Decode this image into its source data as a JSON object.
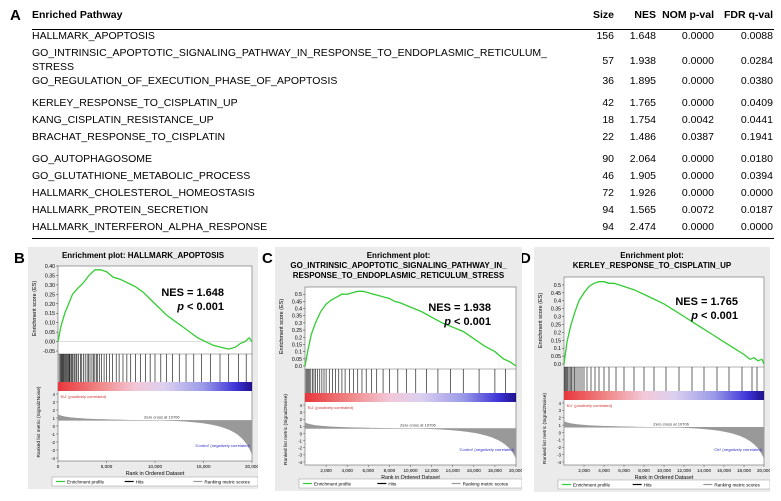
{
  "panel_labels": [
    "A",
    "B",
    "C",
    "D"
  ],
  "table": {
    "headers": [
      "Enriched Pathway",
      "Size",
      "NES",
      "NOM p-val",
      "FDR q-val"
    ],
    "rows": [
      {
        "name": "HALLMARK_APOPTOSIS",
        "size": "156",
        "nes": "1.648",
        "nom": "0.0000",
        "fdr": "0.0088"
      },
      {
        "name": "GO_INTRINSIC_APOPTOTIC_SIGNALING_PATHWAY_IN_RESPONSE_TO_ENDOPLASMIC_RETICULUM_",
        "name2": "STRESS",
        "size": "57",
        "nes": "1.938",
        "nom": "0.0000",
        "fdr": "0.0284"
      },
      {
        "name": "GO_REGULATION_OF_EXECUTION_PHASE_OF_APOPTOSIS",
        "size": "36",
        "nes": "1.895",
        "nom": "0.0000",
        "fdr": "0.0380"
      },
      {
        "name": "KERLEY_RESPONSE_TO_CISPLATIN_UP",
        "size": "42",
        "nes": "1.765",
        "nom": "0.0000",
        "fdr": "0.0409"
      },
      {
        "name": "KANG_CISPLATIN_RESISTANCE_UP",
        "size": "18",
        "nes": "1.754",
        "nom": "0.0042",
        "fdr": "0.0441"
      },
      {
        "name": "BRACHAT_RESPONSE_TO_CISPLATIN",
        "size": "22",
        "nes": "1.486",
        "nom": "0.0387",
        "fdr": "0.1941"
      },
      {
        "name": "GO_AUTOPHAGOSOME",
        "size": "90",
        "nes": "2.064",
        "nom": "0.0000",
        "fdr": "0.0180"
      },
      {
        "name": "GO_GLUTATHIONE_METABOLIC_PROCESS",
        "size": "46",
        "nes": "1.905",
        "nom": "0.0000",
        "fdr": "0.0394"
      },
      {
        "name": "HALLMARK_CHOLESTEROL_HOMEOSTASIS",
        "size": "72",
        "nes": "1.926",
        "nom": "0.0000",
        "fdr": "0.0000"
      },
      {
        "name": "HALLMARK_PROTEIN_SECRETION",
        "size": "94",
        "nes": "1.565",
        "nom": "0.0072",
        "fdr": "0.0187"
      },
      {
        "name": "HALLMARK_INTERFERON_ALPHA_RESPONSE",
        "size": "94",
        "nes": "2.474",
        "nom": "0.0000",
        "fdr": "0.0000"
      }
    ]
  },
  "plots": [
    {
      "title_lines": [
        "Enrichment plot: HALLMARK_APOPTOSIS"
      ],
      "nes_text": "NES = 1.648",
      "p_italic": "p",
      "p_rest": " < 0.001",
      "ylabel_es": "Enrichment score (ES)",
      "ylabel_metric": "Ranked list metric (Signal2Noise)",
      "xlabel": "Rank in Ordered Dataset",
      "pos_label": "'KU' (positively correlated)",
      "neg_label": "'Control' (negatively correlated)",
      "zero_cross": "Zero cross at 10706",
      "legend": [
        "Enrichment profile",
        "Hits",
        "Ranking metric scores"
      ],
      "colors": {
        "profile": "#33cc33",
        "hits": "#000000",
        "metric": "#999999"
      },
      "chart_data": {
        "type": "line",
        "xlim": [
          0,
          20000
        ],
        "x_ticks": [
          0,
          5000,
          10000,
          15000,
          20000
        ],
        "x_tick_labels": [
          "0",
          "5,000",
          "10,000",
          "15,000",
          "20,000"
        ],
        "ylim": [
          -0.05,
          0.4
        ],
        "y_ticks": [
          0.4,
          0.35,
          0.3,
          0.25,
          0.2,
          0.15,
          0.1,
          0.05,
          0.0,
          -0.05
        ],
        "y_tick_labels": [
          "0.40",
          "0.35",
          "0.30",
          "0.25",
          "0.20",
          "0.15",
          "0.10",
          "0.05",
          "0.00",
          "-0.05"
        ],
        "metric_ticks": [
          "4",
          "3",
          "2",
          "1",
          "0",
          "-1",
          "-2",
          "-3",
          "-4"
        ],
        "es_profile": {
          "x": [
            0,
            300,
            700,
            1100,
            1500,
            2000,
            2600,
            3200,
            3800,
            4400,
            5000,
            5700,
            6400,
            7200,
            8000,
            8800,
            9600,
            10400,
            11200,
            12000,
            12800,
            13600,
            14400,
            15200,
            16000,
            16800,
            17600,
            18300,
            18800,
            19300,
            19700,
            20000
          ],
          "y": [
            0.0,
            0.08,
            0.15,
            0.2,
            0.25,
            0.28,
            0.31,
            0.35,
            0.38,
            0.38,
            0.37,
            0.34,
            0.33,
            0.31,
            0.29,
            0.26,
            0.22,
            0.18,
            0.14,
            0.11,
            0.08,
            0.05,
            0.02,
            0.0,
            -0.02,
            -0.03,
            -0.04,
            -0.03,
            -0.01,
            0.0,
            0.02,
            0.0
          ]
        },
        "hits": [
          120,
          250,
          330,
          420,
          510,
          600,
          700,
          780,
          880,
          950,
          1050,
          1150,
          1230,
          1350,
          1450,
          1550,
          1700,
          1850,
          1950,
          2100,
          2300,
          2450,
          2650,
          2800,
          3000,
          3150,
          3300,
          3500,
          3650,
          3800,
          3950,
          4100,
          4300,
          4500,
          4750,
          5000,
          5300,
          5600,
          6000,
          6300,
          6700,
          7100,
          7500,
          8000,
          8500,
          9000,
          9500,
          10000,
          10600,
          11200,
          11800,
          12500,
          13200,
          14000,
          14800,
          15700,
          16700,
          17600,
          18600,
          19400
        ],
        "zero_cross_x": 10706
      }
    },
    {
      "title_lines": [
        "Enrichment plot:",
        "GO_INTRINSIC_APOPTOTIC_SIGNALING_PATHWAY_IN_",
        "RESPONSE_TO_ENDOPLASMIC_RETICULUM_STRESS"
      ],
      "nes_text": "NES = 1.938",
      "p_italic": "p",
      "p_rest": " < 0.001",
      "ylabel_es": "Enrichment score (ES)",
      "ylabel_metric": "Ranked list metric (Signal2Noise)",
      "xlabel": "Rank in Ordered Dataset",
      "pos_label": "'KU' (positively correlated)",
      "neg_label": "'Control' (negatively correlated)",
      "zero_cross": "Zero cross at 10706",
      "legend": [
        "Enrichment profile",
        "Hits",
        "Ranking metric scores"
      ],
      "colors": {
        "profile": "#33cc33",
        "hits": "#000000",
        "metric": "#999999"
      },
      "chart_data": {
        "type": "line",
        "xlim": [
          0,
          20000
        ],
        "x_ticks": [
          2000,
          4000,
          6000,
          8000,
          10000,
          12000,
          14000,
          16000,
          18000,
          20000
        ],
        "x_tick_labels": [
          "2,000",
          "4,000",
          "6,000",
          "8,000",
          "10,000",
          "12,000",
          "14,000",
          "16,000",
          "18,000",
          "20,000"
        ],
        "ylim": [
          0.0,
          0.55
        ],
        "y_ticks": [
          0.5,
          0.45,
          0.4,
          0.35,
          0.3,
          0.25,
          0.2,
          0.15,
          0.1,
          0.05,
          0.0
        ],
        "y_tick_labels": [
          "0.5",
          "0.45",
          "0.4",
          "0.35",
          "0.3",
          "0.25",
          "0.2",
          "0.15",
          "0.1",
          "0.05",
          "0.0"
        ],
        "metric_ticks": [
          "4",
          "3",
          "2",
          "1",
          "0",
          "-1",
          "-2",
          "-3",
          "-4"
        ],
        "es_profile": {
          "x": [
            0,
            300,
            600,
            1000,
            1500,
            2000,
            2500,
            3000,
            3500,
            4000,
            4500,
            5000,
            5500,
            6000,
            6500,
            7000,
            7500,
            8000,
            8500,
            9000,
            10000,
            11000,
            12000,
            13000,
            14000,
            15000,
            16000,
            17000,
            18000,
            18800,
            19400,
            20000
          ],
          "y": [
            0.0,
            0.12,
            0.22,
            0.3,
            0.38,
            0.43,
            0.46,
            0.48,
            0.5,
            0.5,
            0.51,
            0.52,
            0.52,
            0.51,
            0.5,
            0.49,
            0.48,
            0.47,
            0.45,
            0.44,
            0.41,
            0.38,
            0.34,
            0.3,
            0.27,
            0.24,
            0.19,
            0.14,
            0.1,
            0.05,
            0.03,
            0.0
          ]
        },
        "hits": [
          100,
          200,
          300,
          400,
          550,
          700,
          850,
          1000,
          1200,
          1400,
          1600,
          1800,
          2000,
          2300,
          2600,
          2900,
          3200,
          3500,
          3800,
          4200,
          4600,
          5000,
          5400,
          5800,
          6300,
          6800,
          7400,
          8000,
          8800,
          9600,
          10500,
          11500,
          12600,
          13800,
          15000,
          16500,
          18000,
          19000
        ],
        "zero_cross_x": 10706
      }
    },
    {
      "title_lines": [
        "Enrichment plot:",
        "KERLEY_RESPONSE_TO_CISPLATIN_UP"
      ],
      "nes_text": "NES = 1.765",
      "p_italic": "p",
      "p_rest": " < 0.001",
      "ylabel_es": "Enrichment score (ES)",
      "ylabel_metric": "Ranked list metric (Signal2Noise)",
      "xlabel": "Rank in Ordered Dataset",
      "pos_label": "'KU' (positively correlated)",
      "neg_label": "'Ctrl' (negatively correlated)",
      "zero_cross": "Zero cross at 10706",
      "legend": [
        "Enrichment profile",
        "Hits",
        "Ranking metric scores"
      ],
      "colors": {
        "profile": "#33cc33",
        "hits": "#000000",
        "metric": "#999999"
      },
      "chart_data": {
        "type": "line",
        "xlim": [
          0,
          20000
        ],
        "x_ticks": [
          2000,
          4000,
          6000,
          8000,
          10000,
          12000,
          14000,
          16000,
          18000,
          20000
        ],
        "x_tick_labels": [
          "2,000",
          "4,000",
          "6,000",
          "8,000",
          "10,000",
          "12,000",
          "14,000",
          "16,000",
          "18,000",
          "20,000"
        ],
        "ylim": [
          0.0,
          0.55
        ],
        "y_ticks": [
          0.5,
          0.45,
          0.4,
          0.35,
          0.3,
          0.25,
          0.2,
          0.15,
          0.1,
          0.05,
          0.0
        ],
        "y_tick_labels": [
          "0.5",
          "0.45",
          "0.4",
          "0.35",
          "0.3",
          "0.25",
          "0.2",
          "0.15",
          "0.1",
          "0.05",
          "0.0"
        ],
        "metric_ticks": [
          "4",
          "3",
          "2",
          "1",
          "0",
          "-1",
          "-2",
          "-3",
          "-4"
        ],
        "es_profile": {
          "x": [
            0,
            300,
            700,
            1100,
            1500,
            2000,
            2500,
            3000,
            3500,
            4000,
            4500,
            5000,
            5500,
            6000,
            7000,
            8000,
            9000,
            10000,
            11000,
            12000,
            13000,
            14000,
            15000,
            16000,
            17000,
            18000,
            18600,
            19000,
            19400,
            19800,
            20000
          ],
          "y": [
            0.0,
            0.14,
            0.25,
            0.33,
            0.4,
            0.45,
            0.49,
            0.51,
            0.52,
            0.52,
            0.51,
            0.51,
            0.5,
            0.49,
            0.47,
            0.44,
            0.41,
            0.38,
            0.34,
            0.3,
            0.26,
            0.22,
            0.18,
            0.14,
            0.1,
            0.06,
            0.03,
            0.04,
            0.02,
            0.03,
            0.0
          ]
        },
        "hits": [
          80,
          180,
          280,
          380,
          500,
          620,
          760,
          900,
          1050,
          1200,
          1400,
          1600,
          1800,
          2000,
          2300,
          2700,
          3100,
          3500,
          4000,
          4500,
          5200,
          6000,
          7000,
          8000,
          9000,
          10200,
          11500,
          12800,
          14000,
          15300,
          16500,
          17800,
          18800,
          19300
        ],
        "zero_cross_x": 10706
      }
    }
  ]
}
